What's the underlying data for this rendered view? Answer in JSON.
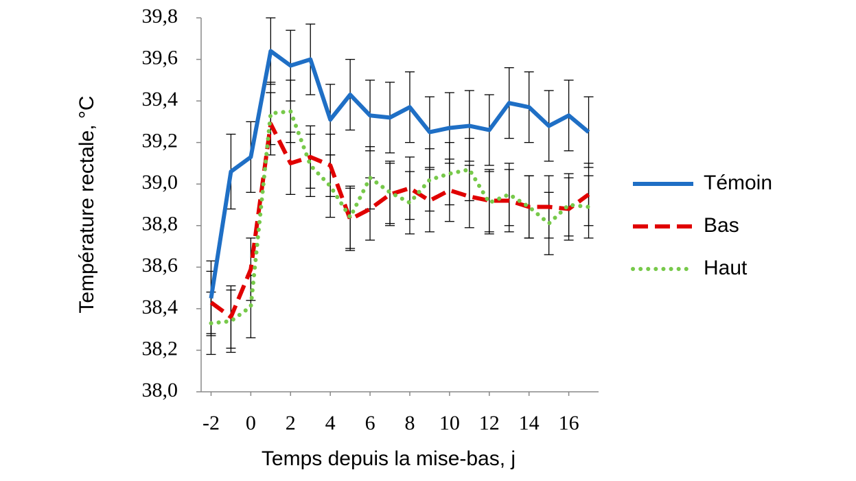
{
  "chart_data": {
    "type": "line",
    "x_label": "Temps depuis la mise-bas, j",
    "y_label": "Température rectale, °C",
    "x": [
      -2,
      -1,
      0,
      1,
      2,
      3,
      4,
      5,
      6,
      7,
      8,
      9,
      10,
      11,
      12,
      13,
      14,
      15,
      16,
      17
    ],
    "xlim": [
      -2.5,
      17.5
    ],
    "xticks": [
      -2,
      0,
      2,
      4,
      6,
      8,
      10,
      12,
      14,
      16
    ],
    "ylim": [
      38.0,
      39.8
    ],
    "yticks": [
      {
        "value": 38.0,
        "label": "38,0"
      },
      {
        "value": 38.2,
        "label": "38,2"
      },
      {
        "value": 38.4,
        "label": "38,4"
      },
      {
        "value": 38.6,
        "label": "38,6"
      },
      {
        "value": 38.8,
        "label": "38,8"
      },
      {
        "value": 39.0,
        "label": "39,0"
      },
      {
        "value": 39.2,
        "label": "39,2"
      },
      {
        "value": 39.4,
        "label": "39,4"
      },
      {
        "value": 39.6,
        "label": "39,6"
      },
      {
        "value": 39.8,
        "label": "39,8"
      }
    ],
    "series": [
      {
        "name": "Témoin",
        "color": "#1f6fc5",
        "style": "solid",
        "values": [
          38.45,
          39.06,
          39.13,
          39.64,
          39.57,
          39.6,
          39.31,
          39.43,
          39.33,
          39.32,
          39.37,
          39.25,
          39.27,
          39.28,
          39.26,
          39.39,
          39.37,
          39.28,
          39.33,
          39.25
        ],
        "errors": [
          0.18,
          0.18,
          0.17,
          0.16,
          0.17,
          0.17,
          0.17,
          0.17,
          0.17,
          0.17,
          0.17,
          0.17,
          0.17,
          0.17,
          0.17,
          0.17,
          0.17,
          0.17,
          0.17,
          0.17
        ]
      },
      {
        "name": "Bas",
        "color": "#e00000",
        "style": "dashed",
        "values": [
          38.43,
          38.36,
          38.59,
          39.29,
          39.1,
          39.13,
          39.09,
          38.83,
          38.88,
          38.95,
          38.98,
          38.92,
          38.97,
          38.94,
          38.92,
          38.92,
          38.89,
          38.89,
          38.88,
          38.95
        ],
        "errors": [
          0.15,
          0.15,
          0.15,
          0.15,
          0.15,
          0.15,
          0.15,
          0.15,
          0.15,
          0.15,
          0.15,
          0.15,
          0.15,
          0.15,
          0.15,
          0.15,
          0.15,
          0.15,
          0.15,
          0.15
        ]
      },
      {
        "name": "Haut",
        "color": "#77c94a",
        "style": "dotted",
        "values": [
          38.33,
          38.34,
          38.41,
          39.34,
          39.35,
          39.09,
          38.99,
          38.84,
          39.03,
          38.96,
          38.91,
          39.02,
          39.05,
          39.07,
          38.91,
          38.95,
          38.89,
          38.81,
          38.9,
          38.89
        ],
        "errors": [
          0.15,
          0.15,
          0.15,
          0.15,
          0.15,
          0.15,
          0.15,
          0.15,
          0.15,
          0.15,
          0.15,
          0.15,
          0.15,
          0.15,
          0.15,
          0.15,
          0.15,
          0.15,
          0.15,
          0.15
        ]
      }
    ]
  }
}
